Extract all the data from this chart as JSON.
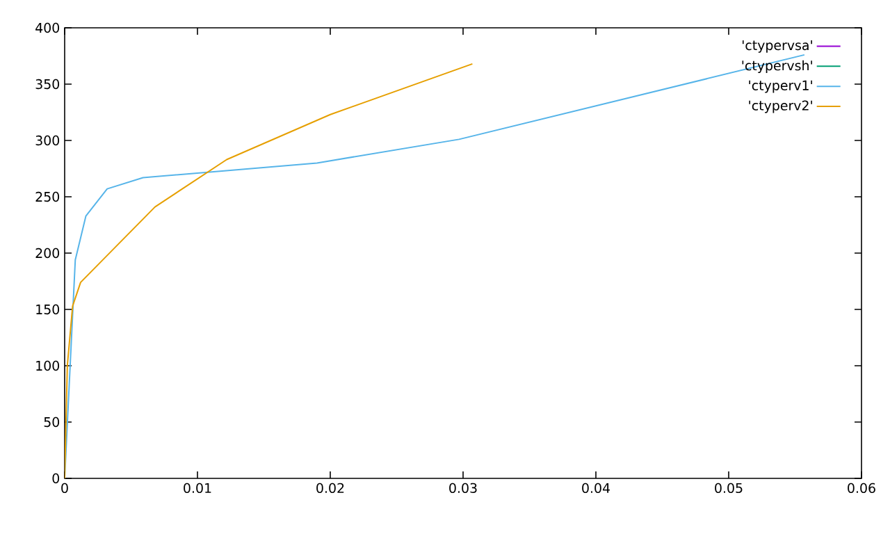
{
  "chart_data": {
    "type": "line",
    "xlim": [
      0,
      0.06
    ],
    "ylim": [
      0,
      400
    ],
    "xticks": [
      0,
      0.01,
      0.02,
      0.03,
      0.04,
      0.05,
      0.06
    ],
    "yticks": [
      0,
      50,
      100,
      150,
      200,
      250,
      300,
      350,
      400
    ],
    "legend": "top right",
    "grid": false,
    "marker": "none",
    "line_style": "solid",
    "series": [
      {
        "name": "'ctypervsa'",
        "color": "#9400d3"
      },
      {
        "name": "'ctypervsh'",
        "color": "#009e73"
      },
      {
        "name": "'ctyperv1'",
        "color": "#56b4e9",
        "x": [
          0,
          0.0008,
          0.0016,
          0.0032,
          0.0059,
          0.019,
          0.0297,
          0.0557
        ],
        "values": [
          0,
          194,
          233,
          257,
          267,
          280,
          301,
          376
        ]
      },
      {
        "name": "'ctyperv2'",
        "color": "#e69f00",
        "x": [
          0,
          0.0002,
          0.0006,
          0.0012,
          0.0068,
          0.0122,
          0.02,
          0.0307
        ],
        "values": [
          0,
          100,
          153,
          174,
          241,
          283,
          323,
          368
        ]
      }
    ]
  }
}
